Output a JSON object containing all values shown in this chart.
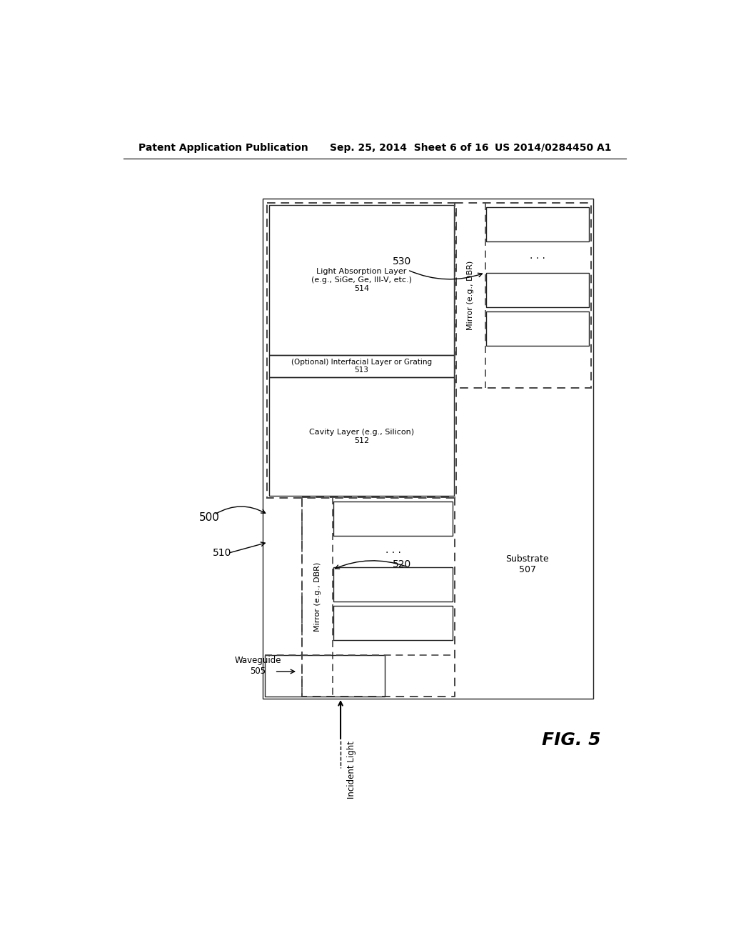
{
  "title_left": "Patent Application Publication",
  "title_center": "Sep. 25, 2014  Sheet 6 of 16",
  "title_right": "US 2014/0284450 A1",
  "fig_label": "FIG. 5",
  "bg_color": "#ffffff"
}
